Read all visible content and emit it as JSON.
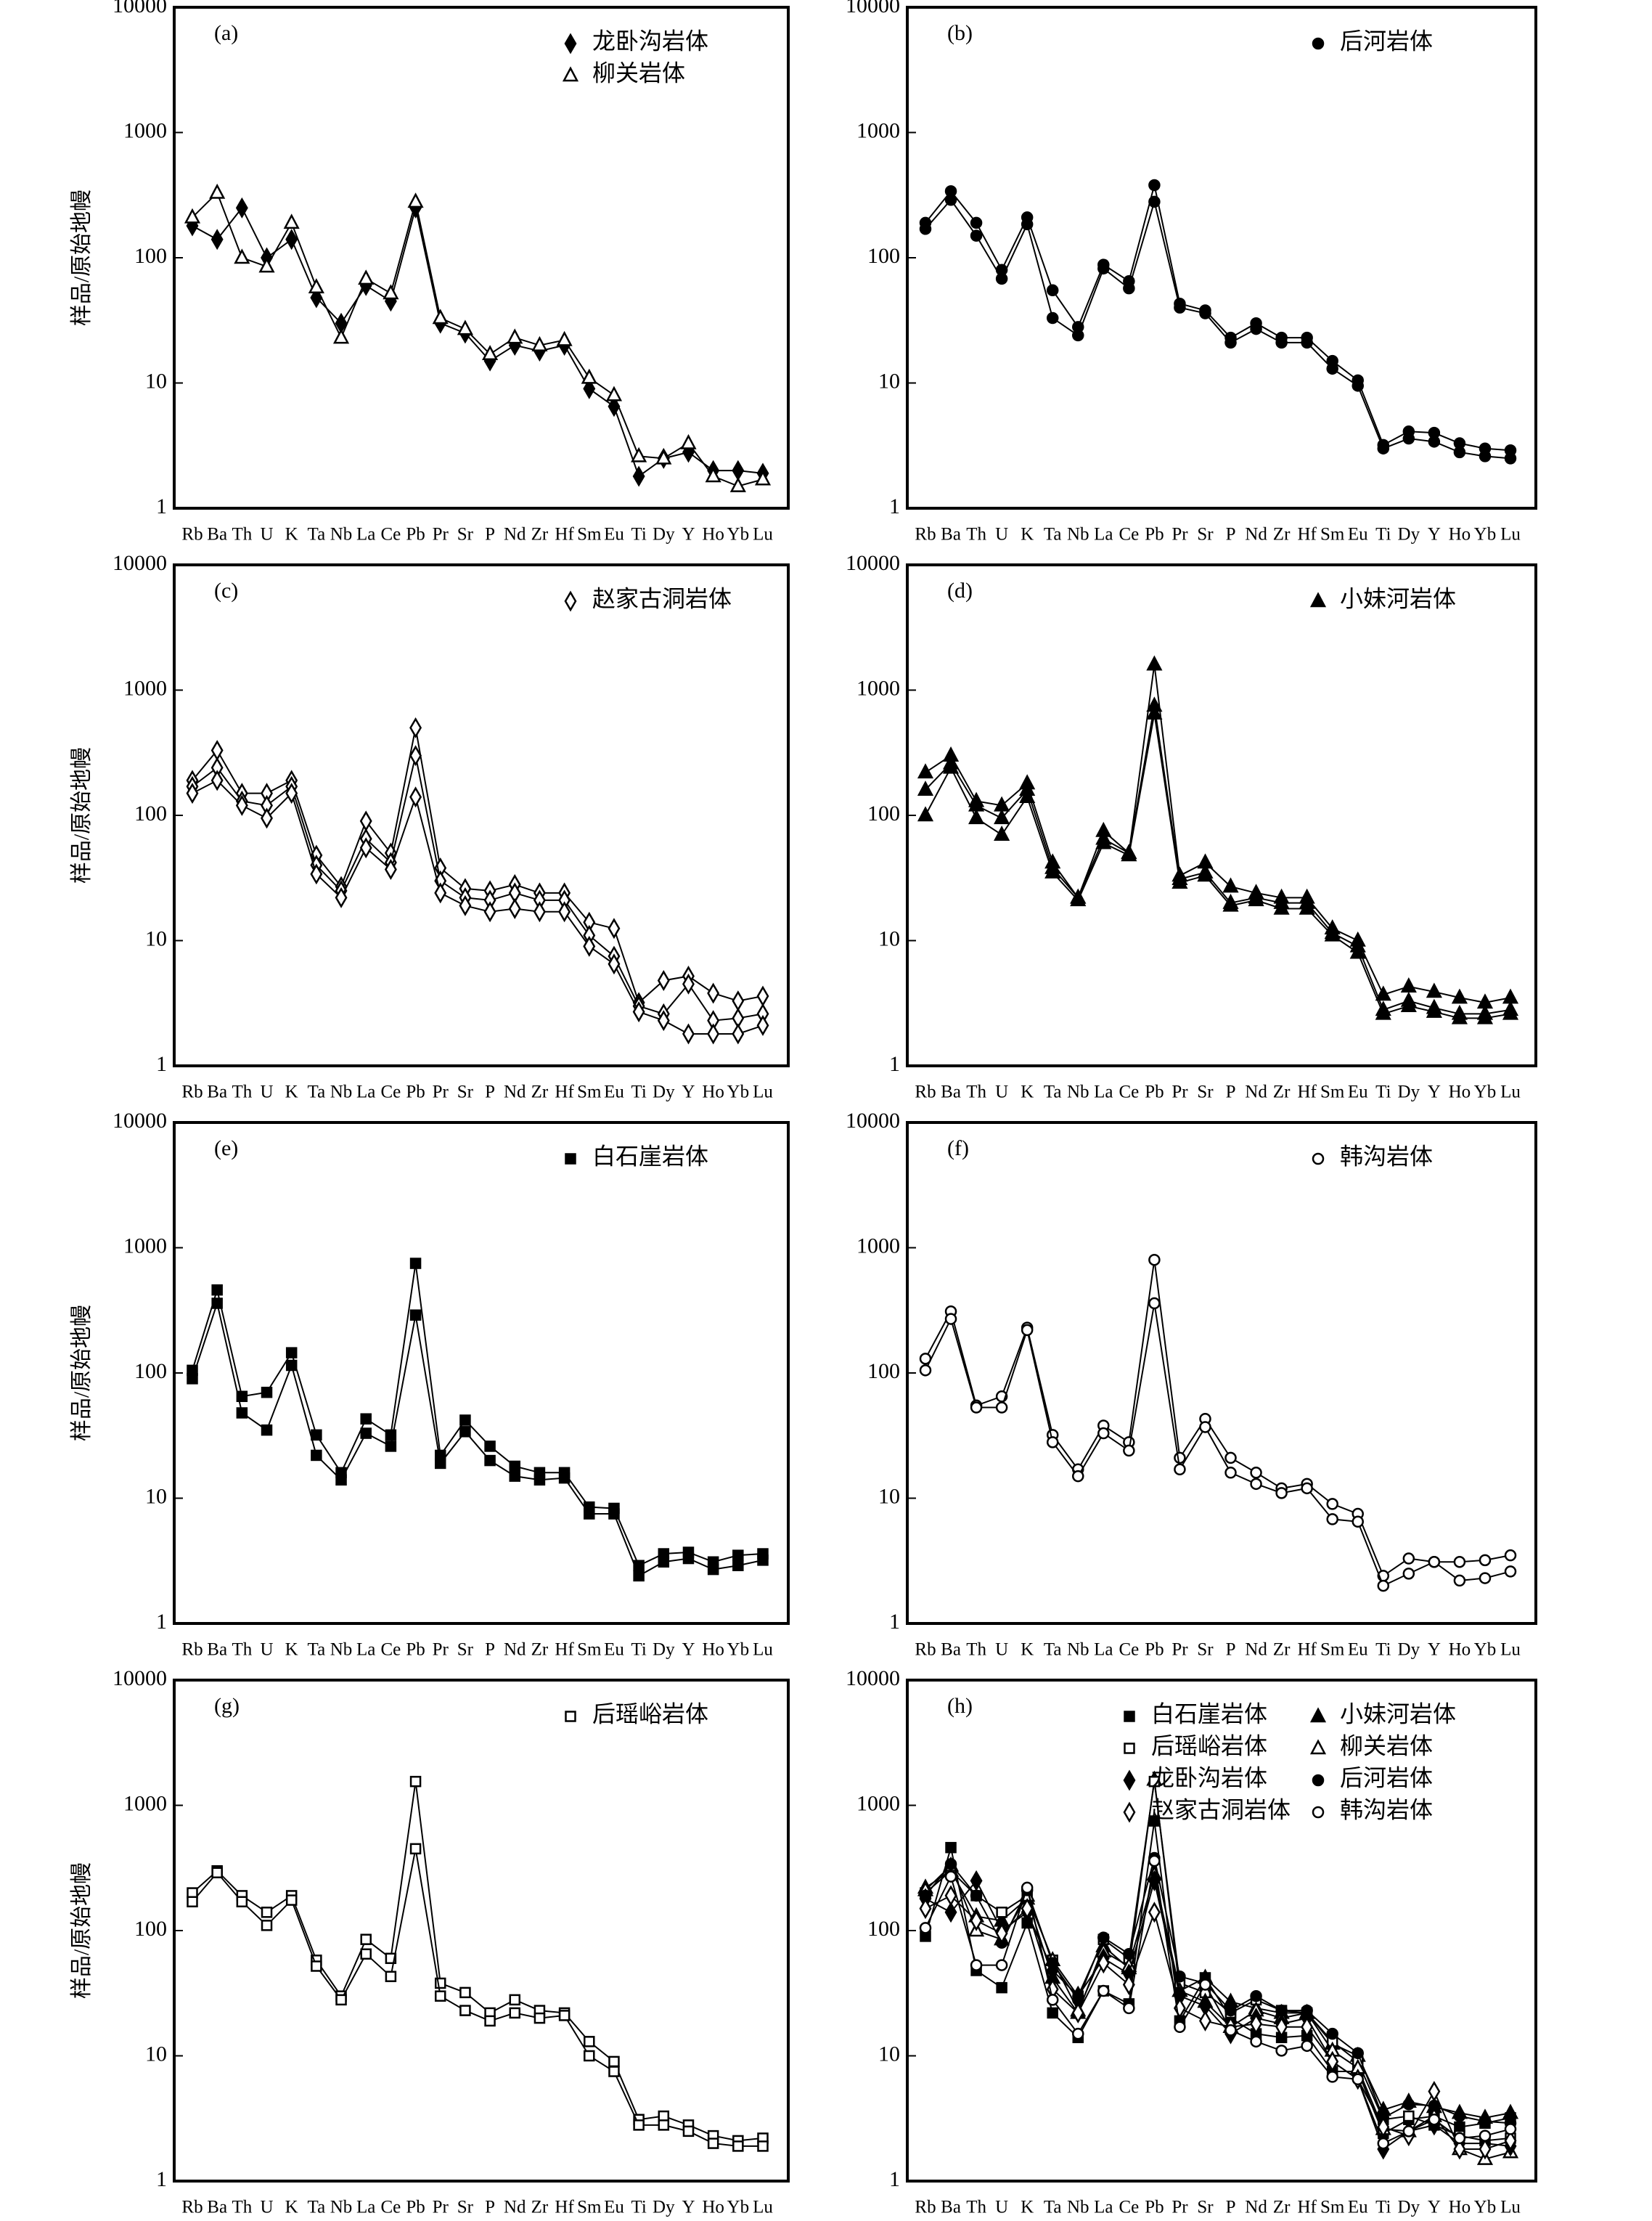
{
  "chart_data": [
    {
      "type": "line",
      "panel_label": "(a)",
      "ylabel": "样品/原始地幔",
      "log": true,
      "ylim": [
        1,
        10000
      ],
      "yticks": [
        1,
        10,
        100,
        1000,
        10000
      ],
      "color": "#000000",
      "legend_loc": "upper right",
      "categories": [
        "Rb",
        "Ba",
        "Th",
        "U",
        "K",
        "Ta",
        "Nb",
        "La",
        "Ce",
        "Pb",
        "Pr",
        "Sr",
        "P",
        "Nd",
        "Zr",
        "Hf",
        "Sm",
        "Eu",
        "Ti",
        "Dy",
        "Y",
        "Ho",
        "Yb",
        "Lu"
      ],
      "legend": [
        {
          "name": "龙卧沟岩体",
          "marker": "diamond-filled"
        },
        {
          "name": "柳关岩体",
          "marker": "triangle-open"
        }
      ],
      "series": [
        {
          "marker": "diamond-filled",
          "values": [
            180,
            140,
            250,
            100,
            140,
            48,
            30,
            60,
            45,
            250,
            30,
            25,
            15,
            20,
            18,
            20,
            9,
            6.5,
            1.8,
            2.5,
            2.8,
            2.0,
            2.0,
            1.9
          ]
        },
        {
          "marker": "triangle-open",
          "values": [
            210,
            330,
            100,
            85,
            190,
            58,
            23,
            68,
            52,
            280,
            33,
            27,
            17,
            23,
            20,
            22,
            11,
            8,
            2.6,
            2.5,
            3.3,
            1.8,
            1.5,
            1.7
          ]
        }
      ]
    },
    {
      "type": "line",
      "panel_label": "(b)",
      "log": true,
      "ylim": [
        1,
        10000
      ],
      "yticks": [
        1,
        10,
        100,
        1000,
        10000
      ],
      "color": "#000000",
      "legend_loc": "upper right",
      "categories": [
        "Rb",
        "Ba",
        "Th",
        "U",
        "K",
        "Ta",
        "Nb",
        "La",
        "Ce",
        "Pb",
        "Pr",
        "Sr",
        "P",
        "Nd",
        "Zr",
        "Hf",
        "Sm",
        "Eu",
        "Ti",
        "Dy",
        "Y",
        "Ho",
        "Yb",
        "Lu"
      ],
      "legend": [
        {
          "name": "后河岩体",
          "marker": "circle-filled"
        }
      ],
      "series": [
        {
          "marker": "circle-filled",
          "values": [
            190,
            340,
            190,
            80,
            210,
            55,
            28,
            88,
            65,
            380,
            43,
            38,
            23,
            30,
            23,
            23,
            15,
            10.5,
            3.2,
            4.1,
            4.0,
            3.3,
            3.0,
            2.9
          ]
        },
        {
          "marker": "circle-filled",
          "values": [
            170,
            290,
            150,
            68,
            185,
            33,
            24,
            82,
            57,
            280,
            40,
            36,
            21,
            27,
            21,
            21,
            13,
            9.5,
            3.0,
            3.6,
            3.4,
            2.8,
            2.6,
            2.5
          ]
        }
      ]
    },
    {
      "type": "line",
      "panel_label": "(c)",
      "ylabel": "样品/原始地幔",
      "log": true,
      "ylim": [
        1,
        10000
      ],
      "yticks": [
        1,
        10,
        100,
        1000,
        10000
      ],
      "color": "#000000",
      "legend_loc": "upper right",
      "categories": [
        "Rb",
        "Ba",
        "Th",
        "U",
        "K",
        "Ta",
        "Nb",
        "La",
        "Ce",
        "Pb",
        "Pr",
        "Sr",
        "P",
        "Nd",
        "Zr",
        "Hf",
        "Sm",
        "Eu",
        "Ti",
        "Dy",
        "Y",
        "Ho",
        "Yb",
        "Lu"
      ],
      "legend": [
        {
          "name": "赵家古洞岩体",
          "marker": "diamond-open"
        }
      ],
      "series": [
        {
          "marker": "diamond-open",
          "values": [
            190,
            330,
            150,
            150,
            190,
            48,
            27,
            90,
            50,
            500,
            38,
            26,
            25,
            28,
            24,
            24,
            14,
            12.5,
            3.2,
            4.8,
            5.2,
            3.8,
            3.3,
            3.6
          ]
        },
        {
          "marker": "diamond-open",
          "values": [
            170,
            240,
            130,
            120,
            170,
            40,
            25,
            65,
            42,
            300,
            30,
            22,
            21,
            24,
            21,
            21,
            11,
            7.5,
            3.0,
            2.6,
            4.5,
            2.3,
            2.4,
            2.6
          ]
        },
        {
          "marker": "diamond-open",
          "values": [
            150,
            190,
            120,
            95,
            150,
            34,
            22,
            55,
            37,
            140,
            24,
            19,
            17,
            18,
            17,
            17,
            9,
            6.5,
            2.7,
            2.3,
            1.8,
            1.8,
            1.8,
            2.1
          ]
        }
      ]
    },
    {
      "type": "line",
      "panel_label": "(d)",
      "log": true,
      "ylim": [
        1,
        10000
      ],
      "yticks": [
        1,
        10,
        100,
        1000,
        10000
      ],
      "color": "#000000",
      "legend_loc": "upper right",
      "categories": [
        "Rb",
        "Ba",
        "Th",
        "U",
        "K",
        "Ta",
        "Nb",
        "La",
        "Ce",
        "Pb",
        "Pr",
        "Sr",
        "P",
        "Nd",
        "Zr",
        "Hf",
        "Sm",
        "Eu",
        "Ti",
        "Dy",
        "Y",
        "Ho",
        "Yb",
        "Lu"
      ],
      "legend": [
        {
          "name": "小妹河岩体",
          "marker": "triangle-filled"
        }
      ],
      "series": [
        {
          "marker": "triangle-filled",
          "values": [
            220,
            300,
            130,
            120,
            180,
            42,
            22,
            75,
            50,
            1600,
            33,
            42,
            27,
            24,
            22,
            22,
            12.5,
            10,
            3.7,
            4.3,
            3.9,
            3.5,
            3.2,
            3.5
          ]
        },
        {
          "marker": "triangle-filled",
          "values": [
            160,
            260,
            120,
            95,
            160,
            38,
            22,
            65,
            50,
            750,
            31,
            35,
            20,
            22,
            20,
            20,
            11.5,
            9,
            2.8,
            3.3,
            2.9,
            2.6,
            2.6,
            2.8
          ]
        },
        {
          "marker": "triangle-filled",
          "values": [
            100,
            240,
            95,
            70,
            140,
            35,
            21,
            60,
            48,
            650,
            29,
            33,
            19,
            21,
            18,
            18,
            11,
            8,
            2.6,
            3.0,
            2.7,
            2.4,
            2.4,
            2.6
          ]
        }
      ]
    },
    {
      "type": "line",
      "panel_label": "(e)",
      "ylabel": "样品/原始地幔",
      "log": true,
      "ylim": [
        1,
        10000
      ],
      "yticks": [
        1,
        10,
        100,
        1000,
        10000
      ],
      "color": "#000000",
      "legend_loc": "upper right",
      "categories": [
        "Rb",
        "Ba",
        "Th",
        "U",
        "K",
        "Ta",
        "Nb",
        "La",
        "Ce",
        "Pb",
        "Pr",
        "Sr",
        "P",
        "Nd",
        "Zr",
        "Hf",
        "Sm",
        "Eu",
        "Ti",
        "Dy",
        "Y",
        "Ho",
        "Yb",
        "Lu"
      ],
      "legend": [
        {
          "name": "白石崖岩体",
          "marker": "square-filled"
        }
      ],
      "series": [
        {
          "marker": "square-filled",
          "values": [
            105,
            460,
            65,
            70,
            145,
            32,
            16,
            43,
            32,
            750,
            22,
            42,
            26,
            18,
            16,
            16,
            8.5,
            8.3,
            2.9,
            3.6,
            3.7,
            3.1,
            3.5,
            3.6
          ]
        },
        {
          "marker": "square-filled",
          "values": [
            90,
            360,
            48,
            35,
            115,
            22,
            14,
            33,
            26,
            290,
            19,
            34,
            20,
            15,
            14,
            14.5,
            7.5,
            7.5,
            2.4,
            3.1,
            3.3,
            2.7,
            2.9,
            3.2
          ]
        }
      ]
    },
    {
      "type": "line",
      "panel_label": "(f)",
      "log": true,
      "ylim": [
        1,
        10000
      ],
      "yticks": [
        1,
        10,
        100,
        1000,
        10000
      ],
      "color": "#000000",
      "legend_loc": "upper right",
      "categories": [
        "Rb",
        "Ba",
        "Th",
        "U",
        "K",
        "Ta",
        "Nb",
        "La",
        "Ce",
        "Pb",
        "Pr",
        "Sr",
        "P",
        "Nd",
        "Zr",
        "Hf",
        "Sm",
        "Eu",
        "Ti",
        "Dy",
        "Y",
        "Ho",
        "Yb",
        "Lu"
      ],
      "legend": [
        {
          "name": "韩沟岩体",
          "marker": "circle-open"
        }
      ],
      "series": [
        {
          "marker": "circle-open",
          "values": [
            130,
            310,
            55,
            65,
            230,
            32,
            17,
            38,
            28,
            800,
            21,
            43,
            21,
            16,
            12,
            13,
            9,
            7.5,
            2.4,
            3.3,
            3.1,
            3.1,
            3.2,
            3.5
          ]
        },
        {
          "marker": "circle-open",
          "values": [
            105,
            270,
            53,
            53,
            220,
            28,
            15,
            33,
            24,
            360,
            17,
            37,
            16,
            13,
            11,
            12,
            6.8,
            6.5,
            2.0,
            2.5,
            3.1,
            2.2,
            2.3,
            2.6
          ]
        }
      ]
    },
    {
      "type": "line",
      "panel_label": "(g)",
      "ylabel": "样品/原始地幔",
      "log": true,
      "ylim": [
        1,
        10000
      ],
      "yticks": [
        1,
        10,
        100,
        1000,
        10000
      ],
      "color": "#000000",
      "legend_loc": "upper right",
      "categories": [
        "Rb",
        "Ba",
        "Th",
        "U",
        "K",
        "Ta",
        "Nb",
        "La",
        "Ce",
        "Pb",
        "Pr",
        "Sr",
        "P",
        "Nd",
        "Zr",
        "Hf",
        "Sm",
        "Eu",
        "Ti",
        "Dy",
        "Y",
        "Ho",
        "Yb",
        "Lu"
      ],
      "legend": [
        {
          "name": "后瑶峪岩体",
          "marker": "square-open"
        }
      ],
      "series": [
        {
          "marker": "square-open",
          "values": [
            200,
            300,
            190,
            140,
            190,
            58,
            30,
            85,
            60,
            1550,
            38,
            32,
            22,
            28,
            23,
            22,
            13,
            9,
            3.1,
            3.3,
            2.8,
            2.3,
            2.1,
            2.2
          ]
        },
        {
          "marker": "square-open",
          "values": [
            170,
            290,
            170,
            110,
            175,
            52,
            28,
            65,
            43,
            450,
            30,
            23,
            19,
            22,
            20,
            21,
            10,
            7.5,
            2.8,
            2.8,
            2.5,
            2.0,
            1.9,
            1.9
          ]
        }
      ]
    },
    {
      "type": "line",
      "panel_label": "(h)",
      "log": true,
      "ylim": [
        1,
        10000
      ],
      "yticks": [
        1,
        10,
        100,
        1000,
        10000
      ],
      "color": "#000000",
      "legend_loc": "upper right",
      "legend_columns": 2,
      "categories": [
        "Rb",
        "Ba",
        "Th",
        "U",
        "K",
        "Ta",
        "Nb",
        "La",
        "Ce",
        "Pb",
        "Pr",
        "Sr",
        "P",
        "Nd",
        "Zr",
        "Hf",
        "Sm",
        "Eu",
        "Ti",
        "Dy",
        "Y",
        "Ho",
        "Yb",
        "Lu"
      ],
      "legend": [
        {
          "name": "白石崖岩体",
          "marker": "square-filled"
        },
        {
          "name": "小妹河岩体",
          "marker": "triangle-filled"
        },
        {
          "name": "后瑶峪岩体",
          "marker": "square-open"
        },
        {
          "name": "柳关岩体",
          "marker": "triangle-open"
        },
        {
          "name": "龙卧沟岩体",
          "marker": "diamond-filled"
        },
        {
          "name": "后河岩体",
          "marker": "circle-filled"
        },
        {
          "name": "赵家古洞岩体",
          "marker": "diamond-open"
        },
        {
          "name": "韩沟岩体",
          "marker": "circle-open"
        }
      ],
      "series": [
        {
          "marker": "square-filled",
          "values": [
            90,
            460,
            48,
            35,
            115,
            22,
            14,
            33,
            26,
            750,
            19,
            42,
            20,
            15,
            14,
            14.5,
            7.5,
            7.5,
            2.4,
            3.1,
            3.3,
            2.7,
            2.9,
            3.2
          ]
        },
        {
          "marker": "triangle-filled",
          "values": [
            220,
            300,
            130,
            120,
            180,
            42,
            22,
            75,
            50,
            1600,
            33,
            42,
            27,
            24,
            22,
            22,
            12.5,
            10,
            3.7,
            4.3,
            3.9,
            3.5,
            3.2,
            3.5
          ]
        },
        {
          "marker": "square-open",
          "values": [
            200,
            300,
            190,
            140,
            190,
            58,
            30,
            85,
            60,
            1550,
            38,
            32,
            22,
            28,
            23,
            22,
            13,
            9,
            3.1,
            3.3,
            2.8,
            2.3,
            2.1,
            2.2
          ]
        },
        {
          "marker": "triangle-open",
          "values": [
            210,
            330,
            100,
            85,
            190,
            58,
            23,
            68,
            52,
            280,
            33,
            27,
            17,
            23,
            20,
            22,
            11,
            8,
            2.6,
            2.5,
            3.3,
            1.8,
            1.5,
            1.7
          ]
        },
        {
          "marker": "diamond-filled",
          "values": [
            180,
            140,
            250,
            100,
            140,
            48,
            30,
            60,
            45,
            250,
            30,
            25,
            15,
            20,
            18,
            20,
            9,
            6.5,
            1.8,
            2.5,
            2.8,
            2.0,
            2.0,
            1.9
          ]
        },
        {
          "marker": "circle-filled",
          "values": [
            190,
            340,
            190,
            80,
            210,
            55,
            28,
            88,
            65,
            380,
            43,
            38,
            23,
            30,
            23,
            23,
            15,
            10.5,
            3.2,
            4.1,
            4.0,
            3.3,
            3.0,
            2.9
          ]
        },
        {
          "marker": "diamond-open",
          "values": [
            150,
            190,
            120,
            95,
            150,
            34,
            22,
            55,
            37,
            140,
            24,
            19,
            17,
            18,
            17,
            17,
            9,
            6.5,
            2.7,
            2.3,
            5.2,
            1.8,
            1.8,
            2.1
          ]
        },
        {
          "marker": "circle-open",
          "values": [
            105,
            270,
            53,
            53,
            220,
            28,
            15,
            33,
            24,
            360,
            17,
            37,
            16,
            13,
            11,
            12,
            6.8,
            6.5,
            2.0,
            2.5,
            3.1,
            2.2,
            2.3,
            2.6
          ]
        }
      ]
    }
  ]
}
